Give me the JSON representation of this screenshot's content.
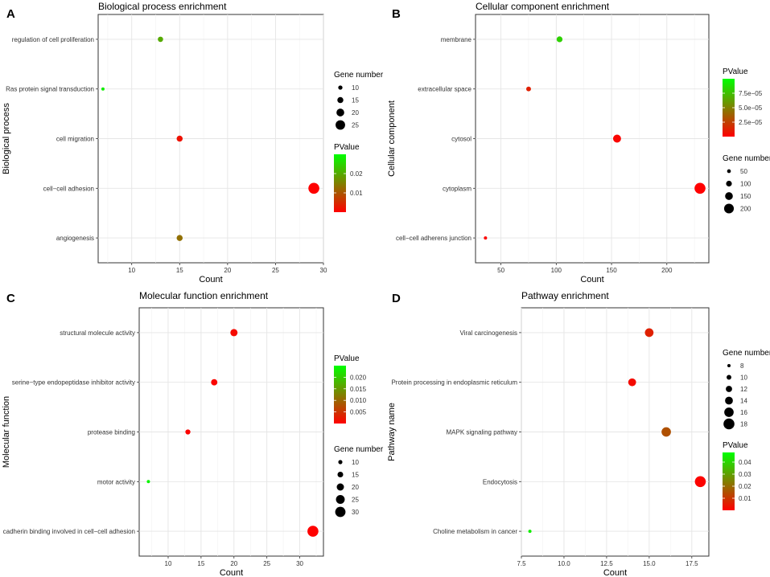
{
  "colors": {
    "high_pvalue": "#00ff00",
    "low_pvalue": "#ff0000",
    "point_outline": "#7a0000"
  },
  "chart_data": [
    {
      "id": "bp",
      "type": "scatter",
      "panel_letter": "A",
      "title": "Biological process enrichment",
      "xlabel": "Count",
      "ylabel": "Biological process",
      "xlim": [
        6.5,
        30
      ],
      "xticks": [
        10,
        15,
        20,
        25,
        30
      ],
      "xtick_labels": [
        "10",
        "15",
        "20",
        "25",
        "30"
      ],
      "categories": [
        "regulation of cell proliferation",
        "Ras protein signal transduction",
        "cell migration",
        "cell−cell adhesion",
        "angiogenesis"
      ],
      "counts": [
        13,
        7,
        15,
        29,
        15
      ],
      "pvalues": [
        0.02,
        0.028,
        0.002,
        0.0001,
        0.013
      ],
      "size_legend": {
        "title": "Gene number",
        "values": [
          10,
          15,
          20,
          25
        ],
        "labels": [
          "10",
          "15",
          "20",
          "25"
        ]
      },
      "color_legend": {
        "title": "PValue",
        "range": [
          0,
          0.03
        ],
        "ticks": [
          0.01,
          0.02
        ],
        "tick_labels": [
          "0.01",
          "0.02"
        ]
      }
    },
    {
      "id": "cc",
      "type": "scatter",
      "panel_letter": "B",
      "title": "Cellular component enrichment",
      "xlabel": "Count",
      "ylabel": "Cellular component",
      "xlim": [
        27,
        238
      ],
      "xticks": [
        50,
        100,
        150,
        200
      ],
      "xtick_labels": [
        "50",
        "100",
        "150",
        "200"
      ],
      "categories": [
        "membrane",
        "extracellular space",
        "cytosol",
        "cytoplasm",
        "cell−cell adherens junction"
      ],
      "counts": [
        103,
        75,
        155,
        230,
        36
      ],
      "pvalues": [
        8.2e-05,
        1.2e-05,
        2e-06,
        1e-07,
        1e-06
      ],
      "size_legend": {
        "title": "Gene number",
        "values": [
          50,
          100,
          150,
          200
        ],
        "labels": [
          "50",
          "100",
          "150",
          "200"
        ]
      },
      "color_legend": {
        "title": "PValue",
        "range": [
          0,
          0.0001
        ],
        "ticks": [
          2.5e-05,
          5e-05,
          7.5e-05
        ],
        "tick_labels": [
          "2.5e−05",
          "5.0e−05",
          "7.5e−05"
        ]
      }
    },
    {
      "id": "mf",
      "type": "scatter",
      "panel_letter": "C",
      "title": "Molecular function enrichment",
      "xlabel": "Count",
      "ylabel": "Molecular function",
      "xlim": [
        5.6,
        33.6
      ],
      "xticks": [
        10,
        15,
        20,
        25,
        30
      ],
      "xtick_labels": [
        "10",
        "15",
        "20",
        "25",
        "30"
      ],
      "categories": [
        "structural molecule activity",
        "serine−type endopeptidase inhibitor activity",
        "protease binding",
        "motor activity",
        "cadherin binding involved in cell−cell adhesion"
      ],
      "counts": [
        20,
        17,
        13,
        7,
        32
      ],
      "pvalues": [
        0.001,
        0.0005,
        0.0003,
        0.024,
        0.0001
      ],
      "size_legend": {
        "title": "Gene number",
        "values": [
          10,
          15,
          20,
          25,
          30
        ],
        "labels": [
          "10",
          "15",
          "20",
          "25",
          "30"
        ]
      },
      "color_legend": {
        "title": "PValue",
        "range": [
          0,
          0.025
        ],
        "ticks": [
          0.005,
          0.01,
          0.015,
          0.02
        ],
        "tick_labels": [
          "0.005",
          "0.010",
          "0.015",
          "0.020"
        ]
      }
    },
    {
      "id": "kegg",
      "type": "scatter",
      "panel_letter": "D",
      "title": "Pathway enrichment",
      "xlabel": "Count",
      "ylabel": "Pathway name",
      "xlim": [
        7.5,
        18.5
      ],
      "xticks": [
        7.5,
        10,
        12.5,
        15,
        17.5
      ],
      "xtick_labels": [
        "7.5",
        "10.0",
        "12.5",
        "15.0",
        "17.5"
      ],
      "categories": [
        "Viral carcinogenesis",
        "Protein processing in endoplasmic reticulum",
        "MAPK signaling pathway",
        "Endocytosis",
        "Choline metabolism in cancer"
      ],
      "counts": [
        15,
        14,
        16,
        18,
        8
      ],
      "pvalues": [
        0.006,
        0.002,
        0.015,
        0.0005,
        0.045
      ],
      "size_legend": {
        "title": "Gene number",
        "values": [
          8,
          10,
          12,
          14,
          16,
          18
        ],
        "labels": [
          "8",
          "10",
          "12",
          "14",
          "16",
          "18"
        ]
      },
      "color_legend": {
        "title": "PValue",
        "range": [
          0,
          0.048
        ],
        "ticks": [
          0.01,
          0.02,
          0.03,
          0.04
        ],
        "tick_labels": [
          "0.01",
          "0.02",
          "0.03",
          "0.04"
        ]
      }
    }
  ]
}
